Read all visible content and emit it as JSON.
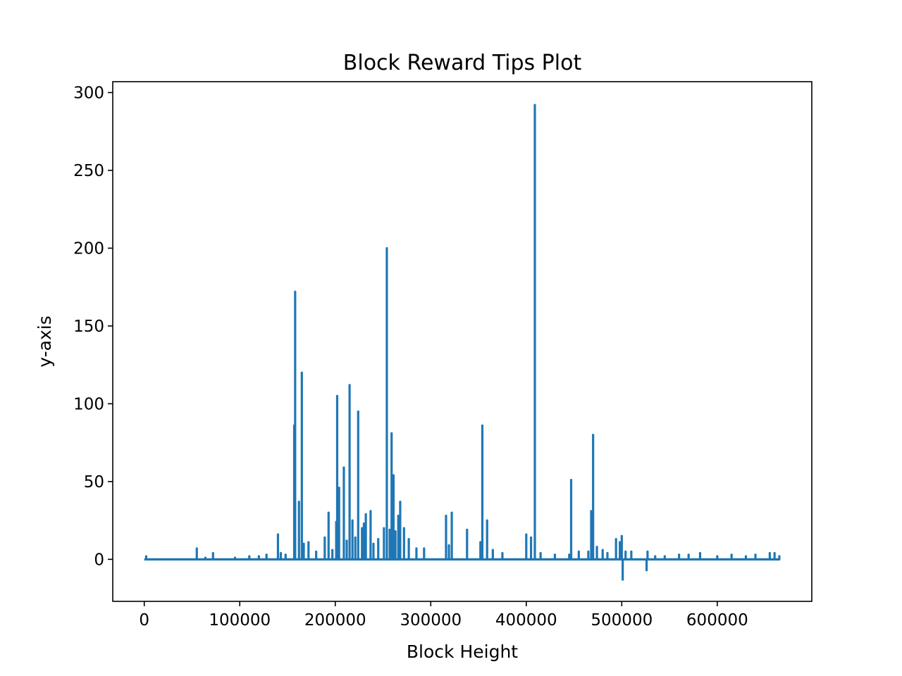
{
  "chart_data": {
    "type": "line",
    "title": "Block Reward Tips Plot",
    "xlabel": "Block Height",
    "ylabel": "y-axis",
    "xlim": [
      -33000,
      699000
    ],
    "ylim": [
      -27,
      307
    ],
    "xticks": [
      0,
      100000,
      200000,
      300000,
      400000,
      500000,
      600000
    ],
    "yticks": [
      0,
      50,
      100,
      150,
      200,
      250,
      300
    ],
    "grid": false,
    "legend": "none",
    "series": [
      {
        "color": "#1f77b4",
        "baseline": 0,
        "x_range": [
          0,
          665000
        ],
        "spikes": [
          [
            2000,
            2
          ],
          [
            55000,
            7
          ],
          [
            64000,
            1
          ],
          [
            72000,
            4
          ],
          [
            95000,
            1
          ],
          [
            110000,
            2
          ],
          [
            120000,
            2
          ],
          [
            128000,
            3
          ],
          [
            140000,
            16
          ],
          [
            143000,
            4
          ],
          [
            148000,
            3
          ],
          [
            157000,
            86
          ],
          [
            158000,
            172
          ],
          [
            162000,
            37
          ],
          [
            165000,
            120
          ],
          [
            167000,
            10
          ],
          [
            172000,
            11
          ],
          [
            180000,
            5
          ],
          [
            189000,
            14
          ],
          [
            193000,
            30
          ],
          [
            197000,
            6
          ],
          [
            201000,
            24
          ],
          [
            202000,
            105
          ],
          [
            204000,
            46
          ],
          [
            209000,
            59
          ],
          [
            212000,
            12
          ],
          [
            215000,
            112
          ],
          [
            218000,
            25
          ],
          [
            221000,
            14
          ],
          [
            224000,
            95
          ],
          [
            228000,
            20
          ],
          [
            230000,
            23
          ],
          [
            232000,
            29
          ],
          [
            237000,
            31
          ],
          [
            240000,
            10
          ],
          [
            245000,
            13
          ],
          [
            251000,
            20
          ],
          [
            254000,
            200
          ],
          [
            257000,
            19
          ],
          [
            259000,
            81
          ],
          [
            261000,
            54
          ],
          [
            263000,
            18
          ],
          [
            266000,
            28
          ],
          [
            268000,
            37
          ],
          [
            272000,
            20
          ],
          [
            277000,
            13
          ],
          [
            285000,
            7
          ],
          [
            293000,
            7
          ],
          [
            316000,
            28
          ],
          [
            319000,
            9
          ],
          [
            322000,
            30
          ],
          [
            338000,
            19
          ],
          [
            352000,
            11
          ],
          [
            354000,
            86
          ],
          [
            359000,
            25
          ],
          [
            365000,
            6
          ],
          [
            375000,
            4
          ],
          [
            400000,
            16
          ],
          [
            405000,
            14
          ],
          [
            409000,
            292
          ],
          [
            415000,
            4
          ],
          [
            430000,
            3
          ],
          [
            445000,
            3
          ],
          [
            447000,
            51
          ],
          [
            455000,
            5
          ],
          [
            465000,
            5
          ],
          [
            468000,
            31
          ],
          [
            470000,
            80
          ],
          [
            474000,
            8
          ],
          [
            480000,
            6
          ],
          [
            485000,
            4
          ],
          [
            494000,
            13
          ],
          [
            498000,
            11
          ],
          [
            500000,
            15
          ],
          [
            501000,
            -13
          ],
          [
            504000,
            5
          ],
          [
            510000,
            5
          ],
          [
            526000,
            -7
          ],
          [
            527000,
            5
          ],
          [
            535000,
            2
          ],
          [
            545000,
            2
          ],
          [
            560000,
            3
          ],
          [
            570000,
            3
          ],
          [
            582000,
            4
          ],
          [
            600000,
            2
          ],
          [
            615000,
            3
          ],
          [
            630000,
            2
          ],
          [
            640000,
            3
          ],
          [
            655000,
            4
          ],
          [
            660000,
            4
          ],
          [
            665000,
            2
          ]
        ]
      }
    ]
  }
}
